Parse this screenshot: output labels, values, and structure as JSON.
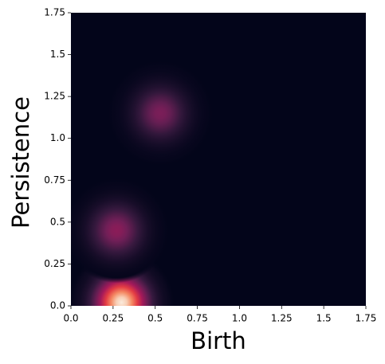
{
  "chart_data": {
    "type": "density",
    "x_label": "Birth",
    "y_label": "Persistence",
    "x": [
      0.3,
      0.27,
      0.53
    ],
    "y": [
      0.02,
      0.45,
      1.15
    ],
    "values": [
      1.0,
      0.42,
      0.38
    ],
    "colormap": "rocket",
    "xlim": [
      0,
      1.75
    ],
    "ylim": [
      0,
      1.75
    ],
    "xticks": [
      {
        "value": 0,
        "label": "0.0"
      },
      0.25,
      0.5,
      0.75,
      {
        "value": 1,
        "label": "1.0"
      },
      1.25,
      1.5,
      1.75
    ],
    "yticks": [
      {
        "value": 0,
        "label": "0.0"
      },
      0.25,
      0.5,
      0.75,
      {
        "value": 1,
        "label": "1.0"
      },
      1.25,
      1.5,
      1.75
    ],
    "grid": false
  }
}
